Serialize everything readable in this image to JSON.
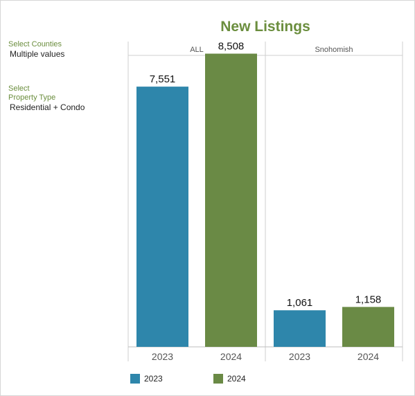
{
  "filters": {
    "counties_label": "Select Counties",
    "counties_value": "Multiple values",
    "property_type_label_line1": "Select",
    "property_type_label_line2": "Property Type",
    "property_type_value": "Residential + Condo"
  },
  "legend": [
    {
      "label": "2023",
      "color": "#2e86ab"
    },
    {
      "label": "2024",
      "color": "#6a8a45"
    }
  ],
  "chart_data": {
    "type": "bar",
    "title": "New Listings",
    "panels": [
      "ALL",
      "Snohomish"
    ],
    "categories": [
      "2023",
      "2024"
    ],
    "series": [
      {
        "name": "2023",
        "values": [
          7551,
          1061
        ],
        "labels": [
          "7,551",
          "1,061"
        ]
      },
      {
        "name": "2024",
        "values": [
          8508,
          1158
        ],
        "labels": [
          "8,508",
          "1,158"
        ]
      }
    ],
    "colors": [
      "#2e86ab",
      "#6a8a45"
    ],
    "ylim": [
      0,
      9000
    ],
    "legend_position": "bottom-left",
    "grid": false
  }
}
